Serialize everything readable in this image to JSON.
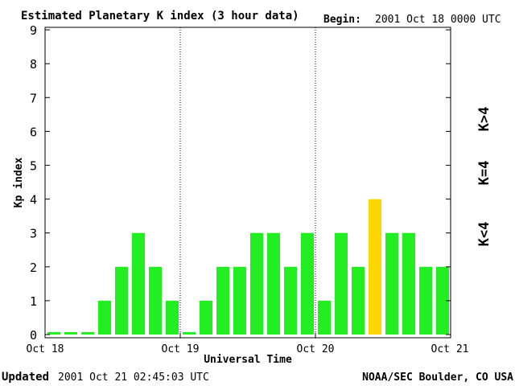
{
  "header": {
    "title": "Estimated Planetary K index (3 hour data)",
    "begin_label": "Begin:",
    "begin_value": "2001 Oct 18 0000 UTC"
  },
  "footer": {
    "updated_label": "Updated",
    "updated_value": "2001 Oct 21 02:45:03 UTC",
    "source": "NOAA/SEC Boulder, CO USA"
  },
  "legend": {
    "below": "K<4",
    "equal": "K=4",
    "above": "K>4"
  },
  "colors": {
    "below": "#22ee22",
    "equal": "#ffd700",
    "above": "#ee2200"
  },
  "chart_data": {
    "type": "bar",
    "ylabel": "Kp index",
    "xlabel": "Universal Time",
    "ylim": [
      0,
      9
    ],
    "yticks": [
      "0",
      "1",
      "2",
      "3",
      "4",
      "5",
      "6",
      "7",
      "8",
      "9"
    ],
    "xticks": [
      "Oct 18",
      "Oct 19",
      "Oct 20",
      "Oct 21"
    ],
    "interval_hours": 3,
    "day_separators": "dotted",
    "values": [
      0,
      0,
      0,
      1,
      2,
      3,
      2,
      1,
      0,
      1,
      2,
      2,
      3,
      3,
      2,
      3,
      1,
      3,
      2,
      4,
      3,
      3,
      2,
      2
    ]
  }
}
